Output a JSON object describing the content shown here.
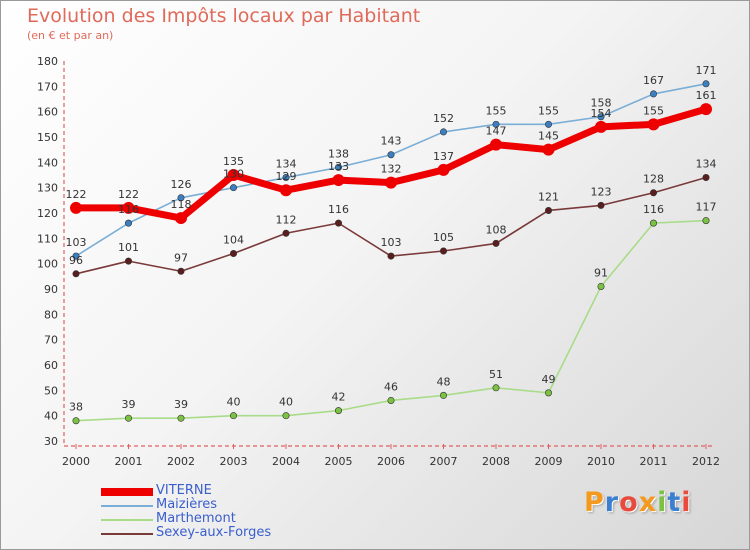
{
  "header": {
    "title": "Evolution des Impôts locaux par Habitant",
    "subtitle": "(en € et par an)"
  },
  "logo": {
    "text": "Proxiti",
    "letters": [
      {
        "ch": "P",
        "color": "#f39a1e"
      },
      {
        "ch": "r",
        "color": "#3b7fd0"
      },
      {
        "ch": "o",
        "color": "#e84a3c"
      },
      {
        "ch": "x",
        "color": "#f39a1e"
      },
      {
        "ch": "i",
        "color": "#7cc242"
      },
      {
        "ch": "t",
        "color": "#3b7fd0"
      },
      {
        "ch": "i",
        "color": "#e84a3c"
      }
    ]
  },
  "chart_data": {
    "type": "line",
    "title": "Evolution des Impôts locaux par Habitant",
    "subtitle": "(en € et par an)",
    "xlabel": "",
    "ylabel": "",
    "categories": [
      "2000",
      "2001",
      "2002",
      "2003",
      "2004",
      "2005",
      "2006",
      "2007",
      "2008",
      "2009",
      "2010",
      "2011",
      "2012"
    ],
    "ylim": [
      30,
      180
    ],
    "yticks": [
      30,
      40,
      50,
      60,
      70,
      80,
      90,
      100,
      110,
      120,
      130,
      140,
      150,
      160,
      170,
      180
    ],
    "grid": false,
    "legend_position": "bottom-left",
    "series": [
      {
        "name": "VITERNE",
        "color": "#ee0000",
        "marker": "#ee0000",
        "bold": true,
        "values": [
          122,
          122,
          118,
          135,
          129,
          133,
          132,
          137,
          147,
          145,
          154,
          155,
          161
        ]
      },
      {
        "name": "Maizières",
        "color": "#7aaed6",
        "marker": "#3b7fc0",
        "bold": false,
        "values": [
          103,
          116,
          126,
          130,
          134,
          138,
          143,
          152,
          155,
          155,
          158,
          167,
          171
        ]
      },
      {
        "name": "Marthemont",
        "color": "#a8dc88",
        "marker": "#7cc242",
        "bold": false,
        "values": [
          38,
          39,
          39,
          40,
          40,
          42,
          46,
          48,
          51,
          49,
          91,
          116,
          117
        ]
      },
      {
        "name": "Sexey-aux-Forges",
        "color": "#7a3a3a",
        "marker": "#5a1e1e",
        "bold": false,
        "values": [
          96,
          101,
          97,
          104,
          112,
          116,
          103,
          105,
          108,
          121,
          123,
          128,
          134
        ]
      }
    ]
  }
}
